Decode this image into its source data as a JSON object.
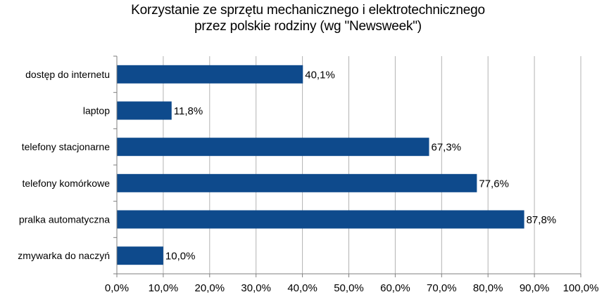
{
  "chart_data": {
    "type": "bar",
    "orientation": "horizontal",
    "title_lines": [
      "Korzystanie ze sprzętu mechanicznego i elektrotechnicznego",
      "przez polskie rodziny (wg \"Newsweek\")"
    ],
    "categories": [
      "dostęp do internetu",
      "laptop",
      "telefony stacjonarne",
      "telefony komórkowe",
      "pralka automatyczna",
      "zmywarka do naczyń"
    ],
    "values": [
      40.1,
      11.8,
      67.3,
      77.6,
      87.8,
      10.0
    ],
    "data_labels": [
      "40,1%",
      "11,8%",
      "67,3%",
      "77,6%",
      "87,8%",
      "10,0%"
    ],
    "x_ticks": [
      "0,0%",
      "10,0%",
      "20,0%",
      "30,0%",
      "40,0%",
      "50,0%",
      "60,0%",
      "70,0%",
      "80,0%",
      "90,0%",
      "100,0%"
    ],
    "xlim": [
      0,
      100
    ],
    "grid": "vertical",
    "legend": "none",
    "bar_color": "#0e4a8c",
    "grid_color": "#b3b3b3"
  }
}
